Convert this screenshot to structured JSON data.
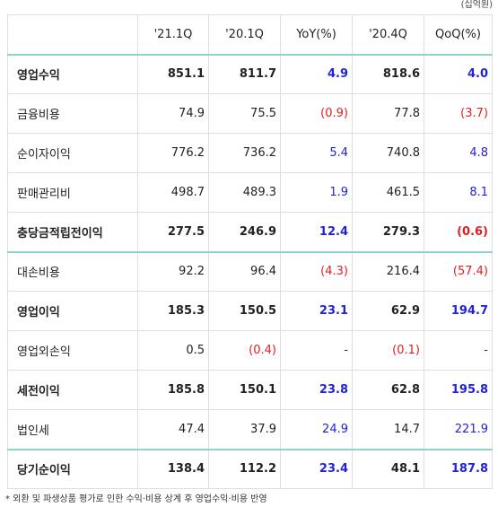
{
  "unit_note": "(십억원)",
  "headers": [
    "",
    "'21.1Q",
    "'20.1Q",
    "YoY(%)",
    "'20.4Q",
    "QoQ(%)"
  ],
  "rows": [
    {
      "label": "영업수익",
      "q21_1": "851.1",
      "q20_1": "811.7",
      "yoy": "4.9",
      "q20_4": "818.6",
      "qoq": "4.0",
      "bold": true
    },
    {
      "label": "금융비용",
      "q21_1": "74.9",
      "q20_1": "75.5",
      "yoy": "(0.9)",
      "q20_4": "77.8",
      "qoq": "(3.7)",
      "bold": false
    },
    {
      "label": "순이자이익",
      "q21_1": "776.2",
      "q20_1": "736.2",
      "yoy": "5.4",
      "q20_4": "740.8",
      "qoq": "4.8",
      "bold": false
    },
    {
      "label": "판매관리비",
      "q21_1": "498.7",
      "q20_1": "489.3",
      "yoy": "1.9",
      "q20_4": "461.5",
      "qoq": "8.1",
      "bold": false
    },
    {
      "label": "충당금적립전이익",
      "q21_1": "277.5",
      "q20_1": "246.9",
      "yoy": "12.4",
      "q20_4": "279.3",
      "qoq": "(0.6)",
      "bold": true
    },
    {
      "label": "대손비용",
      "q21_1": "92.2",
      "q20_1": "96.4",
      "yoy": "(4.3)",
      "q20_4": "216.4",
      "qoq": "(57.4)",
      "bold": false
    },
    {
      "label": "영업이익",
      "q21_1": "185.3",
      "q20_1": "150.5",
      "yoy": "23.1",
      "q20_4": "62.9",
      "qoq": "194.7",
      "bold": true
    },
    {
      "label": "영업외손익",
      "q21_1": "0.5",
      "q20_1": "(0.4)",
      "yoy": "-",
      "q20_4": "(0.1)",
      "qoq": "-",
      "bold": false
    },
    {
      "label": "세전이익",
      "q21_1": "185.8",
      "q20_1": "150.1",
      "yoy": "23.8",
      "q20_4": "62.8",
      "qoq": "195.8",
      "bold": true
    },
    {
      "label": "법인세",
      "q21_1": "47.4",
      "q20_1": "37.9",
      "yoy": "24.9",
      "q20_4": "14.7",
      "qoq": "221.9",
      "bold": false
    },
    {
      "label": "당기순이익",
      "q21_1": "138.4",
      "q20_1": "112.2",
      "yoy": "23.4",
      "q20_4": "48.1",
      "qoq": "187.8",
      "bold": true
    }
  ],
  "footnote": "* 외환 및 파생상품 평가로 인한 수익·비용 상계 후 영업수익·비용 반영",
  "colors": {
    "positive": "#2323d4",
    "negative": "#e02020",
    "rule": "#8fd3ce"
  }
}
